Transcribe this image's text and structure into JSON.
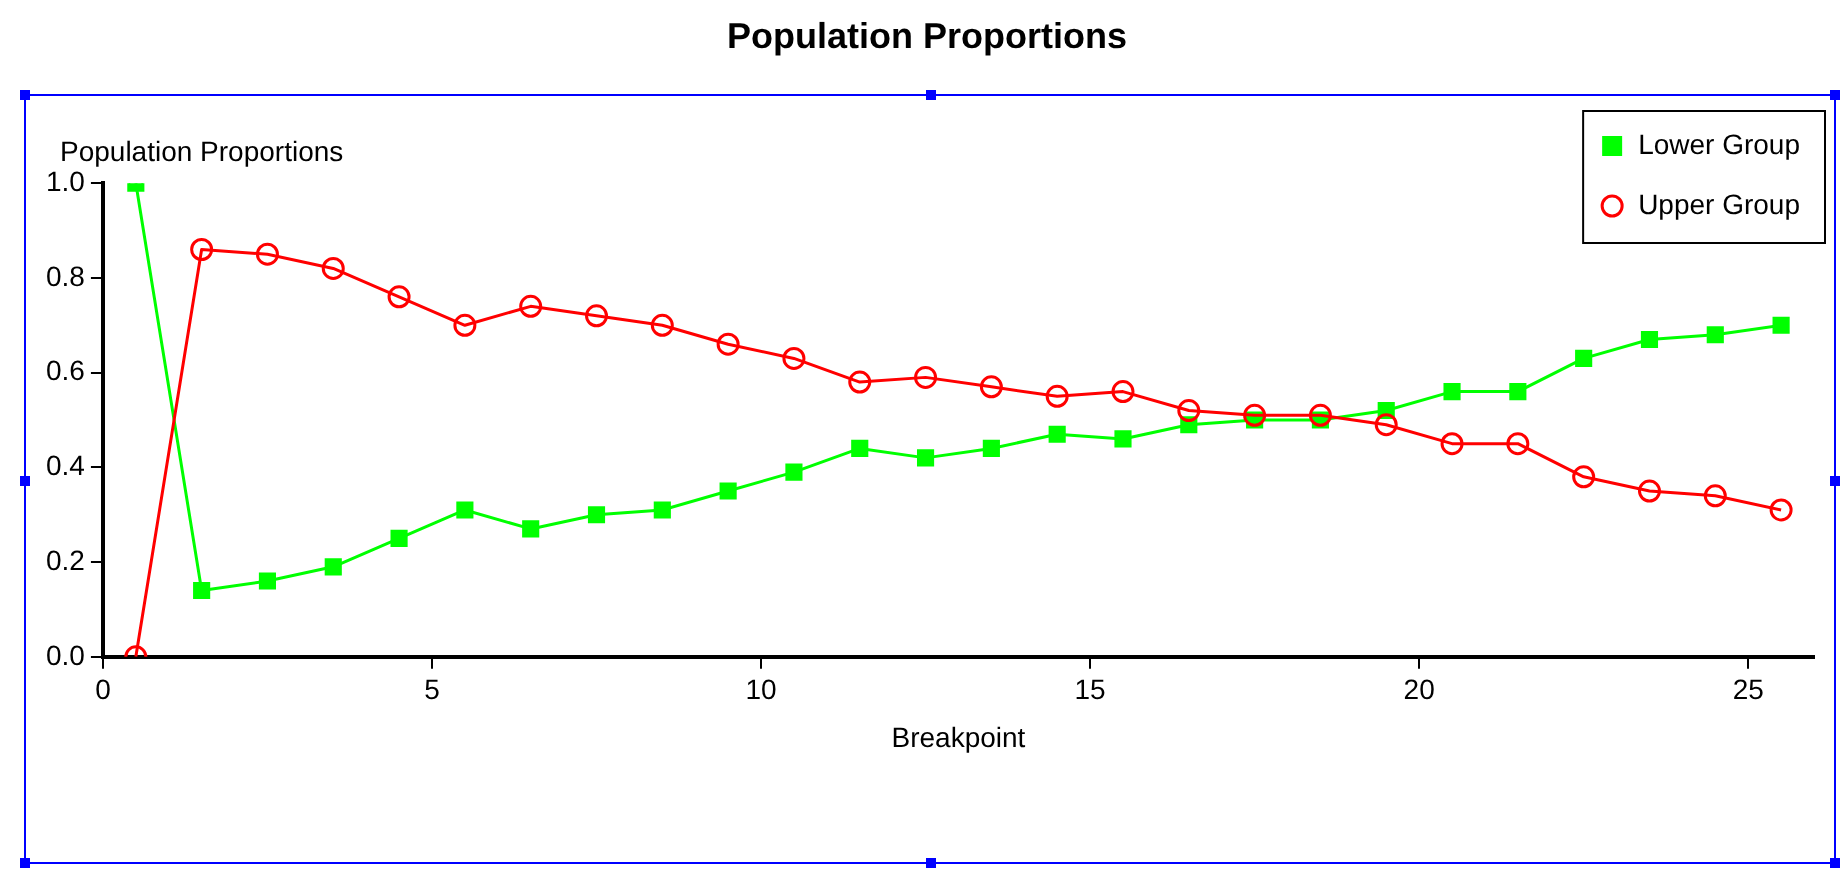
{
  "chart_data": {
    "type": "line",
    "title": "Population Proportions",
    "ylabel": "Population Proportions",
    "xlabel": "Breakpoint",
    "x": [
      0.5,
      1.5,
      2.5,
      3.5,
      4.5,
      5.5,
      6.5,
      7.5,
      8.5,
      9.5,
      10.5,
      11.5,
      12.5,
      13.5,
      14.5,
      15.5,
      16.5,
      17.5,
      18.5,
      19.5,
      20.5,
      21.5,
      22.5,
      23.5,
      24.5,
      25.5
    ],
    "series": [
      {
        "name": "Lower Group",
        "color": "#00ff00",
        "marker": "square",
        "values": [
          1.0,
          0.14,
          0.16,
          0.19,
          0.25,
          0.31,
          0.27,
          0.3,
          0.31,
          0.35,
          0.39,
          0.44,
          0.42,
          0.44,
          0.47,
          0.46,
          0.49,
          0.5,
          0.5,
          0.52,
          0.56,
          0.56,
          0.63,
          0.67,
          0.68,
          0.7
        ]
      },
      {
        "name": "Upper Group",
        "color": "#ff0000",
        "marker": "circle",
        "values": [
          0.0,
          0.86,
          0.85,
          0.82,
          0.76,
          0.7,
          0.74,
          0.72,
          0.7,
          0.66,
          0.63,
          0.58,
          0.59,
          0.57,
          0.55,
          0.56,
          0.52,
          0.51,
          0.51,
          0.49,
          0.45,
          0.45,
          0.38,
          0.35,
          0.34,
          0.31
        ]
      }
    ],
    "xlim": [
      0,
      26
    ],
    "xticks": [
      0,
      5,
      10,
      15,
      20,
      25
    ],
    "ylim": [
      0,
      1
    ],
    "yticks": [
      {
        "value": 0,
        "label": "0.0"
      },
      {
        "value": 0.2,
        "label": "0.2"
      },
      {
        "value": 0.4,
        "label": "0.4"
      },
      {
        "value": 0.6,
        "label": "0.6"
      },
      {
        "value": 0.8,
        "label": "0.8"
      },
      {
        "value": 1,
        "label": "1.0"
      }
    ],
    "grid": false,
    "legend": "top right",
    "line_style": "solid"
  }
}
